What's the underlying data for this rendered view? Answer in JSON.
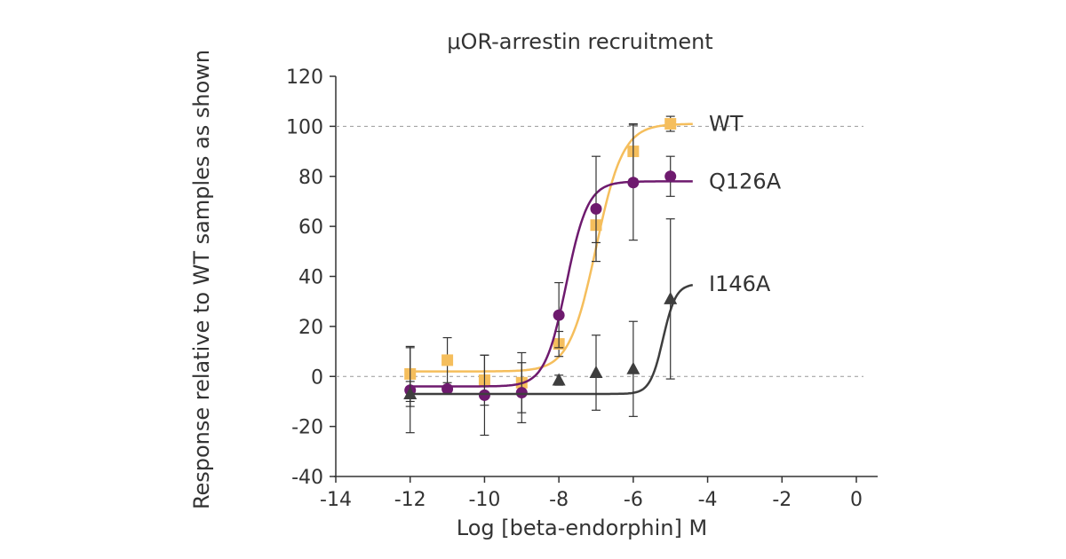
{
  "chart_data": {
    "type": "scatter",
    "title": "μOR-arrestin recruitment",
    "xlabel": "Log [beta-endorphin] M",
    "ylabel": "Response relative to WT samples as shown",
    "xlim": [
      -14,
      0
    ],
    "ylim": [
      -40,
      120
    ],
    "x_ticks": [
      -14,
      -12,
      -10,
      -8,
      -6,
      -4,
      -2,
      0
    ],
    "y_ticks": [
      -40,
      -20,
      0,
      20,
      40,
      60,
      80,
      100,
      120
    ],
    "x_tick_labels": [
      "-14",
      "-12",
      "-10",
      "-8",
      "-6",
      "-4",
      "-2",
      "0"
    ],
    "y_tick_labels": [
      "-40",
      "-20",
      "0",
      "20",
      "40",
      "60",
      "80",
      "100",
      "120"
    ],
    "reference_lines": [
      100,
      0
    ],
    "grid": false,
    "series": [
      {
        "name": "WT",
        "color": "#F5BE5C",
        "marker": "square",
        "x": [
          -12,
          -11,
          -10,
          -9,
          -8,
          -7,
          -6,
          -5
        ],
        "y": [
          1,
          6.5,
          -1.5,
          -2.5,
          13,
          60.5,
          90,
          101
        ],
        "err": [
          11,
          9,
          10,
          12,
          5,
          7,
          11,
          3
        ],
        "fit": {
          "bottom": 2,
          "top": 101,
          "logec50": -7.0,
          "hill": 1.2,
          "xmin": -12,
          "xmax": -4.4
        }
      },
      {
        "name": "Q126A",
        "color": "#6E1A6E",
        "marker": "circle",
        "x": [
          -12,
          -11,
          -10,
          -9,
          -8,
          -7,
          -6,
          -5
        ],
        "y": [
          -5.5,
          -5,
          -7.5,
          -6.5,
          24.5,
          67,
          77.5,
          80
        ],
        "err": [
          17,
          0,
          16,
          12,
          13,
          21,
          23,
          8
        ],
        "fit": {
          "bottom": -4,
          "top": 78,
          "logec50": -7.8,
          "hill": 1.5,
          "xmin": -12,
          "xmax": -4.4
        }
      },
      {
        "name": "I146A",
        "color": "#3E3E3E",
        "marker": "triangle",
        "x": [
          -12,
          -8,
          -7,
          -6,
          -5
        ],
        "y": [
          -7,
          -1.5,
          1.5,
          3,
          31
        ],
        "err": [
          5,
          2,
          15,
          19,
          32
        ],
        "fit": {
          "bottom": -7,
          "top": 37,
          "logec50": -5.2,
          "hill": 2.5,
          "xmin": -12,
          "xmax": -4.4
        }
      }
    ]
  }
}
